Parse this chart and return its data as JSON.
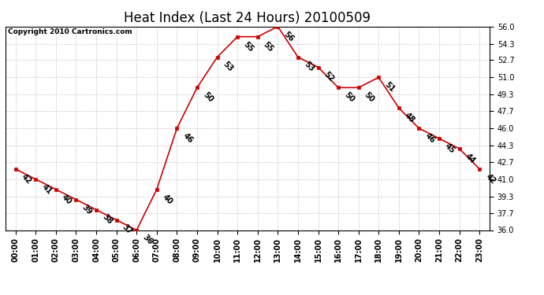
{
  "title": "Heat Index (Last 24 Hours) 20100509",
  "copyright": "Copyright 2010 Cartronics.com",
  "hours": [
    "00:00",
    "01:00",
    "02:00",
    "03:00",
    "04:00",
    "05:00",
    "06:00",
    "07:00",
    "08:00",
    "09:00",
    "10:00",
    "11:00",
    "12:00",
    "13:00",
    "14:00",
    "15:00",
    "16:00",
    "17:00",
    "18:00",
    "19:00",
    "20:00",
    "21:00",
    "22:00",
    "23:00"
  ],
  "values": [
    42,
    41,
    40,
    39,
    38,
    37,
    36,
    40,
    46,
    50,
    53,
    55,
    55,
    56,
    53,
    52,
    50,
    50,
    51,
    48,
    46,
    45,
    44,
    42
  ],
  "ylim": [
    36.0,
    56.0
  ],
  "yticks": [
    36.0,
    37.7,
    39.3,
    41.0,
    42.7,
    44.3,
    46.0,
    47.7,
    49.3,
    51.0,
    52.7,
    54.3,
    56.0
  ],
  "line_color": "#cc0000",
  "marker_color": "#cc0000",
  "bg_color": "#ffffff",
  "grid_color": "#bbbbbb",
  "title_fontsize": 12,
  "label_fontsize": 7,
  "annot_fontsize": 7,
  "copyright_fontsize": 6.5
}
